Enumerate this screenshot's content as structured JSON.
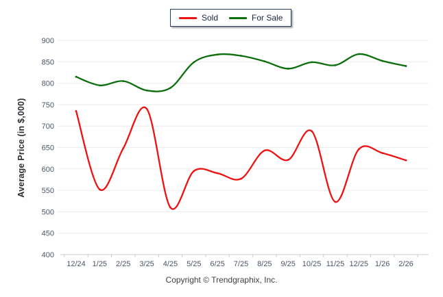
{
  "legend": {
    "items": [
      {
        "label": "Sold",
        "color": "#ee1111"
      },
      {
        "label": "For Sale",
        "color": "#0a6e0a"
      }
    ]
  },
  "footer": {
    "copyright": "Copyright © Trendgraphix, Inc."
  },
  "chart_data": {
    "type": "line",
    "title": "",
    "xlabel": "",
    "ylabel": "Average Price (in $,000)",
    "categories": [
      "12/24",
      "1/25",
      "2/25",
      "3/25",
      "4/25",
      "5/25",
      "6/25",
      "7/25",
      "8/25",
      "9/25",
      "10/25",
      "11/25",
      "12/25",
      "1/26",
      "2/26"
    ],
    "series": [
      {
        "name": "Sold",
        "color": "#ee1111",
        "values": [
          735,
          552,
          648,
          740,
          510,
          595,
          590,
          577,
          643,
          621,
          688,
          523,
          646,
          637,
          620
        ]
      },
      {
        "name": "For Sale",
        "color": "#0a6e0a",
        "values": [
          815,
          795,
          805,
          783,
          789,
          849,
          867,
          864,
          851,
          834,
          849,
          842,
          868,
          852,
          840
        ]
      }
    ],
    "ylim": [
      400,
      900
    ],
    "yticks": [
      400,
      450,
      500,
      550,
      600,
      650,
      700,
      750,
      800,
      850,
      900
    ],
    "grid": true,
    "smooth": true,
    "legend_position": "top-center"
  }
}
